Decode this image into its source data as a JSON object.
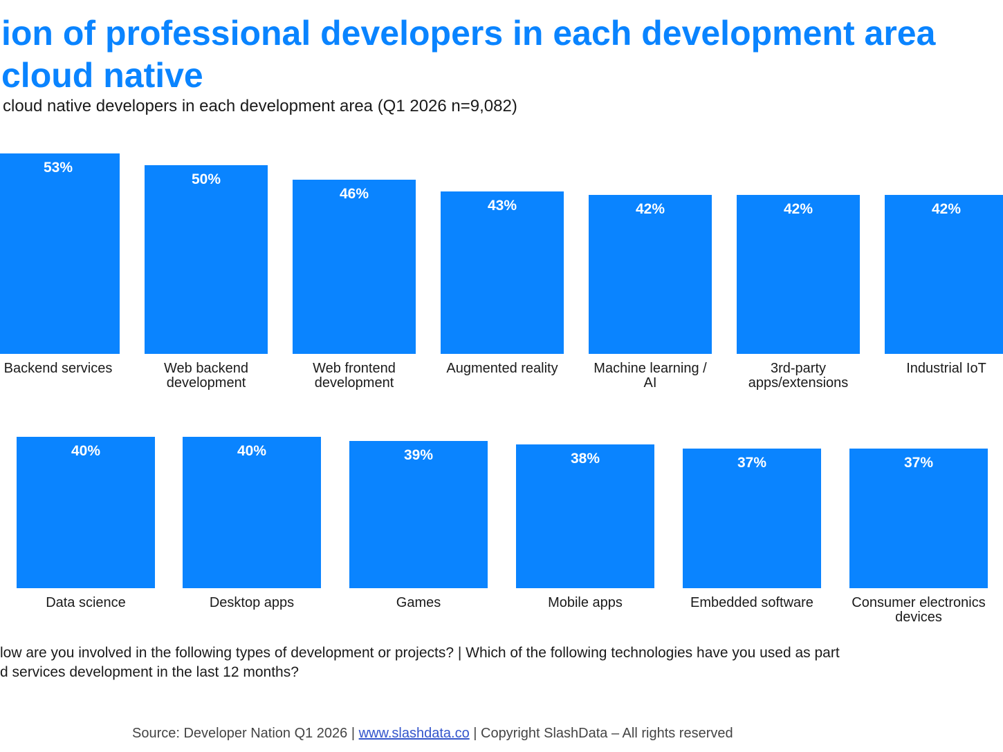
{
  "title": {
    "line1": "ion of professional developers in each development area",
    "line2": "cloud native"
  },
  "subtitle": "cloud native developers in each development area (Q1 2026 n=9,082)",
  "question": {
    "line1": "low are you involved in the following types of development or projects? | Which of the following technologies have you used as part",
    "line2": "d services development in the last 12 months?"
  },
  "source": {
    "prefix": "Source: Developer Nation Q1 2026 | ",
    "link": "www.slashdata.co",
    "suffix": " | Copyright SlashData – All rights reserved"
  },
  "colors": {
    "bar": "#0A84FF",
    "title": "#0A84FF",
    "value_label": "#FFFFFF"
  },
  "chart_data": {
    "type": "bar",
    "categories": [
      "Backend services",
      "Web backend development",
      "Web frontend development",
      "Augmented reality",
      "Machine learning / AI",
      "3rd-party apps/extensions",
      "Industrial IoT",
      "Data science",
      "Desktop apps",
      "Games",
      "Mobile apps",
      "Embedded software",
      "Consumer electronics devices"
    ],
    "values": [
      53,
      50,
      46,
      43,
      42,
      42,
      42,
      40,
      40,
      39,
      38,
      37,
      37
    ],
    "value_labels": [
      "53%",
      "50%",
      "46%",
      "43%",
      "42%",
      "42%",
      "42%",
      "40%",
      "40%",
      "39%",
      "38%",
      "37%",
      "37%"
    ],
    "category_labels": [
      "Backend services",
      "Web backend\ndevelopment",
      "Web frontend\ndevelopment",
      "Augmented reality",
      "Machine learning /\nAI",
      "3rd-party\napps/extensions",
      "Industrial IoT",
      "Data science",
      "Desktop apps",
      "Games",
      "Mobile apps",
      "Embedded software",
      "Consumer electronics\ndevices"
    ],
    "unit": "%",
    "grid": false,
    "legend": "none"
  }
}
